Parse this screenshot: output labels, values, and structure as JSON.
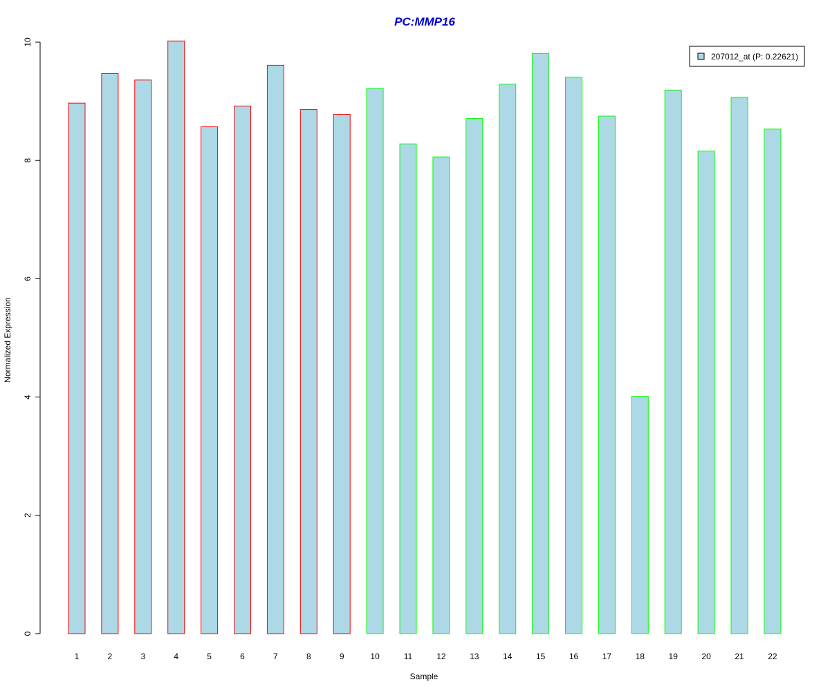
{
  "chart_data": {
    "type": "bar",
    "title": "PC:MMP16",
    "xlabel": "Sample",
    "ylabel": "Normalized Expression",
    "ylim": [
      0,
      10
    ],
    "yticks": [
      "0",
      "2",
      "4",
      "6",
      "8",
      "10"
    ],
    "categories": [
      "1",
      "2",
      "3",
      "4",
      "5",
      "6",
      "7",
      "8",
      "9",
      "10",
      "11",
      "12",
      "13",
      "14",
      "15",
      "16",
      "17",
      "18",
      "19",
      "20",
      "21",
      "22"
    ],
    "series": [
      {
        "name": "207012_at (P: 0.22621)",
        "values": [
          8.97,
          9.47,
          9.36,
          10.02,
          8.57,
          8.92,
          9.61,
          8.86,
          8.78,
          9.22,
          8.28,
          8.06,
          8.71,
          9.29,
          9.81,
          9.41,
          8.75,
          4.01,
          9.19,
          8.16,
          9.07,
          8.53
        ]
      }
    ],
    "groups": [
      {
        "from": 0,
        "to": 8,
        "border_color": "#ff0000"
      },
      {
        "from": 9,
        "to": 21,
        "border_color": "#00ff00"
      }
    ],
    "bar_fill": "#add8e6",
    "title_color": "#0000cd",
    "legend_position": "top-right",
    "grid": false
  }
}
